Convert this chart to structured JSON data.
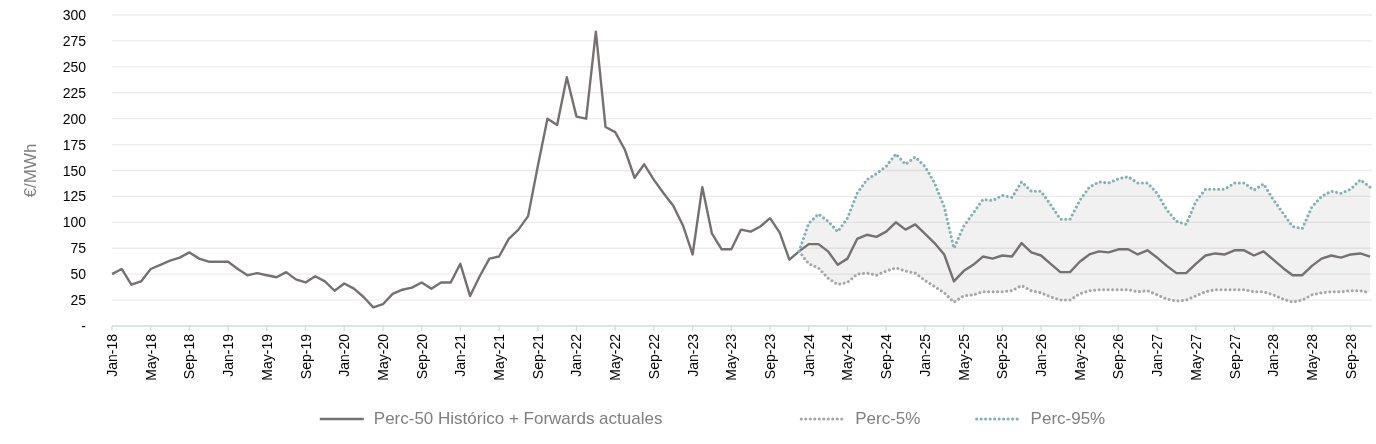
{
  "chart_data": {
    "type": "line",
    "ylabel": "€/MWh",
    "categories": [
      "Jan-18",
      null,
      null,
      null,
      "May-18",
      null,
      null,
      null,
      "Sep-18",
      null,
      null,
      null,
      "Jan-19",
      null,
      null,
      null,
      "May-19",
      null,
      null,
      null,
      "Sep-19",
      null,
      null,
      null,
      "Jan-20",
      null,
      null,
      null,
      "May-20",
      null,
      null,
      null,
      "Sep-20",
      null,
      null,
      null,
      "Jan-21",
      null,
      null,
      null,
      "May-21",
      null,
      null,
      null,
      "Sep-21",
      null,
      null,
      null,
      "Jan-22",
      null,
      null,
      null,
      "May-22",
      null,
      null,
      null,
      "Sep-22",
      null,
      null,
      null,
      "Jan-23",
      null,
      null,
      null,
      "May-23",
      null,
      null,
      null,
      "Sep-23",
      null,
      null,
      null,
      "Jan-24",
      null,
      null,
      null,
      "May-24",
      null,
      null,
      null,
      "Sep-24",
      null,
      null,
      null,
      "Jan-25",
      null,
      null,
      null,
      "May-25",
      null,
      null,
      null,
      "Sep-25",
      null,
      null,
      null,
      "Jan-26",
      null,
      null,
      null,
      "May-26",
      null,
      null,
      null,
      "Sep-26",
      null,
      null,
      null,
      "Jan-27",
      null,
      null,
      null,
      "May-27",
      null,
      null,
      null,
      "Sep-27",
      null,
      null,
      null,
      "Jan-28",
      null,
      null,
      null,
      "May-28",
      null,
      null,
      null,
      "Sep-28",
      null,
      null
    ],
    "series": [
      {
        "name": "Perc-50 Histórico + Forwards actuales",
        "color": "#767171",
        "line_style": "solid",
        "values": [
          50,
          55,
          40,
          43,
          55,
          59,
          63,
          66,
          71,
          65,
          62,
          62,
          62,
          55,
          49,
          51,
          49,
          47,
          52,
          45,
          42,
          48,
          43,
          34,
          41,
          36,
          28,
          18,
          21,
          31,
          35,
          37,
          42,
          36,
          42,
          42,
          60,
          29,
          48,
          65,
          67,
          84,
          93,
          106,
          154,
          200,
          194,
          240,
          202,
          200,
          284,
          192,
          187,
          170,
          143,
          156,
          141,
          128,
          116,
          97,
          69,
          134,
          89,
          74,
          74,
          93,
          91,
          96,
          104,
          90,
          64,
          72,
          79,
          79,
          72,
          59,
          65,
          84,
          88,
          86,
          91,
          100,
          93,
          98,
          89,
          80,
          69,
          43,
          53,
          59,
          67,
          65,
          68,
          67,
          80,
          71,
          68,
          60,
          52,
          52,
          62,
          69,
          72,
          71,
          74,
          74,
          69,
          73,
          66,
          58,
          51,
          51,
          60,
          68,
          70,
          69,
          73,
          73,
          68,
          72,
          64,
          56,
          49,
          49,
          58,
          65,
          68,
          66,
          69,
          70,
          67
        ],
        "lower": [
          null,
          null,
          null,
          null,
          null,
          null,
          null,
          null,
          null,
          null,
          null,
          null,
          null,
          null,
          null,
          null,
          null,
          null,
          null,
          null,
          null,
          null,
          null,
          null,
          null,
          null,
          null,
          null,
          null,
          null,
          null,
          null,
          null,
          null,
          null,
          null,
          null,
          null,
          null,
          null,
          null,
          null,
          null,
          null,
          null,
          null,
          null,
          null,
          null,
          null,
          null,
          null,
          null,
          null,
          null,
          null,
          null,
          null,
          null,
          null,
          null,
          null,
          null,
          null,
          null,
          null,
          null,
          null,
          null,
          null,
          null,
          72,
          60,
          56,
          46,
          40,
          42,
          50,
          51,
          49,
          53,
          56,
          53,
          51,
          44,
          38,
          32,
          23,
          29,
          30,
          33,
          33,
          33,
          34,
          39,
          34,
          32,
          28,
          25,
          25,
          31,
          34,
          35,
          35,
          35,
          35,
          33,
          34,
          30,
          26,
          24,
          25,
          29,
          33,
          35,
          35,
          35,
          35,
          33,
          33,
          30,
          26,
          23,
          25,
          30,
          32,
          33,
          33,
          34,
          34,
          32
        ],
        "upper": [
          null,
          null,
          null,
          null,
          null,
          null,
          null,
          null,
          null,
          null,
          null,
          null,
          null,
          null,
          null,
          null,
          null,
          null,
          null,
          null,
          null,
          null,
          null,
          null,
          null,
          null,
          null,
          null,
          null,
          null,
          null,
          null,
          null,
          null,
          null,
          null,
          null,
          null,
          null,
          null,
          null,
          null,
          null,
          null,
          null,
          null,
          null,
          null,
          null,
          null,
          null,
          null,
          null,
          null,
          null,
          null,
          null,
          null,
          null,
          null,
          null,
          null,
          null,
          null,
          null,
          null,
          null,
          null,
          null,
          null,
          null,
          72,
          99,
          108,
          101,
          91,
          104,
          128,
          141,
          147,
          154,
          166,
          156,
          163,
          154,
          138,
          115,
          75,
          96,
          109,
          122,
          121,
          126,
          124,
          139,
          130,
          130,
          117,
          103,
          103,
          121,
          134,
          139,
          138,
          142,
          144,
          138,
          138,
          128,
          112,
          101,
          98,
          120,
          132,
          132,
          132,
          138,
          138,
          131,
          137,
          122,
          109,
          96,
          94,
          115,
          125,
          130,
          128,
          132,
          141,
          134
        ]
      },
      {
        "name": "Perc-5%",
        "color": "#a6a6a6",
        "line_style": "dotted",
        "values": [
          null,
          null,
          null,
          null,
          null,
          null,
          null,
          null,
          null,
          null,
          null,
          null,
          null,
          null,
          null,
          null,
          null,
          null,
          null,
          null,
          null,
          null,
          null,
          null,
          null,
          null,
          null,
          null,
          null,
          null,
          null,
          null,
          null,
          null,
          null,
          null,
          null,
          null,
          null,
          null,
          null,
          null,
          null,
          null,
          null,
          null,
          null,
          null,
          null,
          null,
          null,
          null,
          null,
          null,
          null,
          null,
          null,
          null,
          null,
          null,
          null,
          null,
          null,
          null,
          null,
          null,
          null,
          null,
          null,
          null,
          null,
          72,
          60,
          56,
          46,
          40,
          42,
          50,
          51,
          49,
          53,
          56,
          53,
          51,
          44,
          38,
          32,
          23,
          29,
          30,
          33,
          33,
          33,
          34,
          39,
          34,
          32,
          28,
          25,
          25,
          31,
          34,
          35,
          35,
          35,
          35,
          33,
          34,
          30,
          26,
          24,
          25,
          29,
          33,
          35,
          35,
          35,
          35,
          33,
          33,
          30,
          26,
          23,
          25,
          30,
          32,
          33,
          33,
          34,
          34,
          32
        ]
      },
      {
        "name": "Perc-95%",
        "color": "#7fb2b0",
        "line_style": "dotted",
        "values": [
          null,
          null,
          null,
          null,
          null,
          null,
          null,
          null,
          null,
          null,
          null,
          null,
          null,
          null,
          null,
          null,
          null,
          null,
          null,
          null,
          null,
          null,
          null,
          null,
          null,
          null,
          null,
          null,
          null,
          null,
          null,
          null,
          null,
          null,
          null,
          null,
          null,
          null,
          null,
          null,
          null,
          null,
          null,
          null,
          null,
          null,
          null,
          null,
          null,
          null,
          null,
          null,
          null,
          null,
          null,
          null,
          null,
          null,
          null,
          null,
          null,
          null,
          null,
          null,
          null,
          null,
          null,
          null,
          null,
          null,
          null,
          72,
          99,
          108,
          101,
          91,
          104,
          128,
          141,
          147,
          154,
          166,
          156,
          163,
          154,
          138,
          115,
          75,
          96,
          109,
          122,
          121,
          126,
          124,
          139,
          130,
          130,
          117,
          103,
          103,
          121,
          134,
          139,
          138,
          142,
          144,
          138,
          138,
          128,
          112,
          101,
          98,
          120,
          132,
          132,
          132,
          138,
          138,
          131,
          137,
          122,
          109,
          96,
          94,
          115,
          125,
          130,
          128,
          132,
          141,
          134
        ]
      }
    ],
    "ylim": [
      0,
      300
    ],
    "yticks": [
      {
        "value": 0,
        "label": "-"
      },
      25,
      50,
      75,
      100,
      125,
      150,
      175,
      200,
      225,
      250,
      275,
      300
    ],
    "grid": "y",
    "legend": "bottom",
    "marker": "none"
  }
}
